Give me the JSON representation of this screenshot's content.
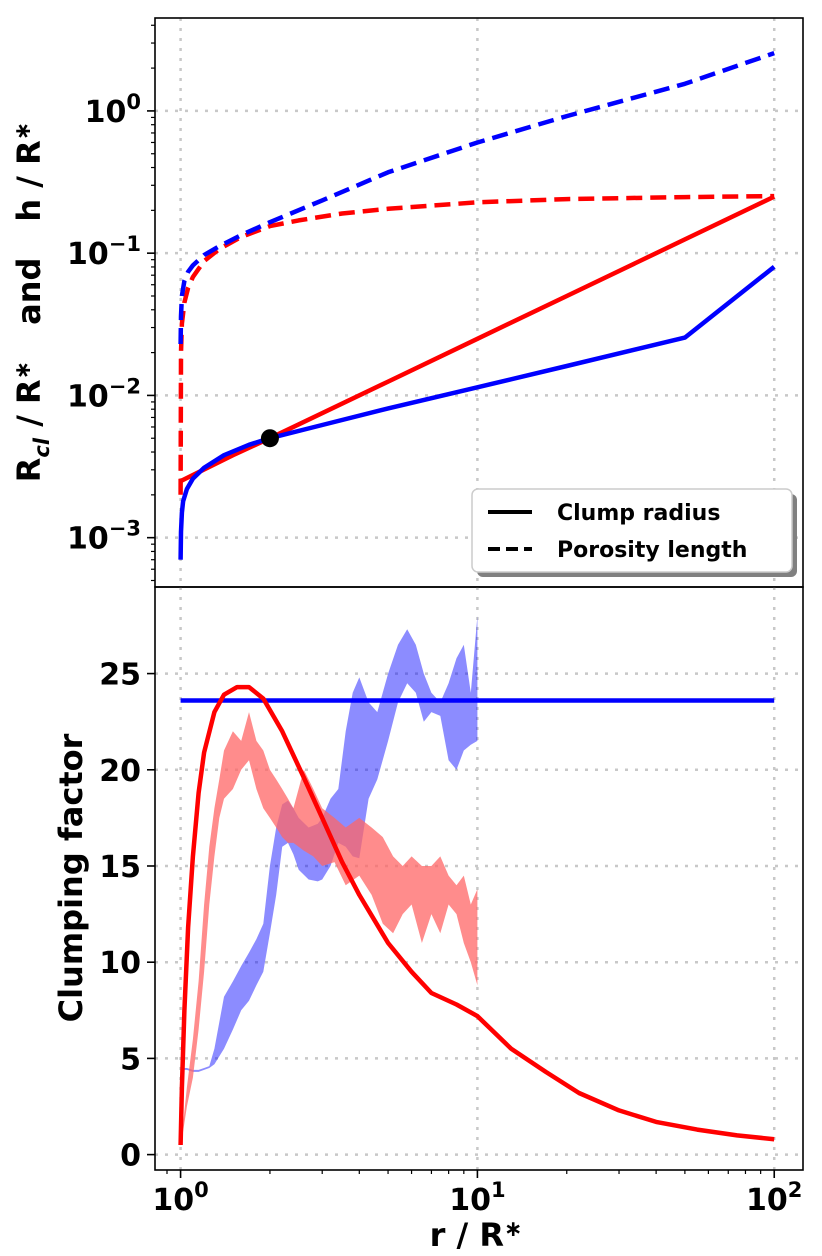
{
  "chart_data": [
    {
      "type": "line",
      "panel": "top",
      "xlabel": "",
      "ylabel": "R_cl / R_* and h / R_*",
      "ylabel_parts": {
        "r": "R",
        "cl": "cl",
        "mid": " / R",
        "star": "∗",
        "and": "and",
        "h": "h / R"
      },
      "xscale": "log",
      "yscale": "log",
      "xlim": [
        0.82,
        125
      ],
      "ylim": [
        0.00045,
        4.5
      ],
      "grid": true,
      "yticks": [
        {
          "value": 0.001,
          "label": "10",
          "exp": "−3"
        },
        {
          "value": 0.01,
          "label": "10",
          "exp": "−2"
        },
        {
          "value": 0.1,
          "label": "10",
          "exp": "−1"
        },
        {
          "value": 1,
          "label": "10",
          "exp": "0"
        }
      ],
      "legend": {
        "placement": "lower-right",
        "entries": [
          {
            "label": "Clump radius",
            "linestyle": "solid"
          },
          {
            "label": "Porosity length",
            "linestyle": "dashed"
          }
        ]
      },
      "series": [
        {
          "color": "#ff0000",
          "linestyle": "solid",
          "x": [
            1.0,
            1.5,
            2.0,
            5.0,
            10,
            20,
            50,
            100
          ],
          "y": [
            0.0025,
            0.0038,
            0.005,
            0.0125,
            0.025,
            0.05,
            0.125,
            0.25
          ]
        },
        {
          "color": "#0000ff",
          "linestyle": "solid",
          "x": [
            1.0,
            1.003,
            1.01,
            1.02,
            1.05,
            1.1,
            1.2,
            1.4,
            1.7,
            2.0,
            3,
            5,
            10,
            20,
            50,
            100
          ],
          "y": [
            0.0007,
            0.0011,
            0.0015,
            0.0018,
            0.0022,
            0.0026,
            0.0031,
            0.0038,
            0.0045,
            0.005,
            0.0062,
            0.0081,
            0.0114,
            0.0161,
            0.0255,
            0.0802
          ]
        },
        {
          "color": "#ff0000",
          "linestyle": "dashed",
          "x": [
            1.0,
            1.003,
            1.01,
            1.03,
            1.06,
            1.1,
            1.2,
            1.35,
            1.6,
            2.0,
            2.5,
            3.5,
            5,
            10,
            20,
            50,
            100
          ],
          "y": [
            0.002,
            0.02,
            0.032,
            0.045,
            0.057,
            0.068,
            0.088,
            0.107,
            0.13,
            0.155,
            0.17,
            0.19,
            0.205,
            0.228,
            0.24,
            0.248,
            0.252
          ]
        },
        {
          "color": "#0000ff",
          "linestyle": "dashed",
          "x": [
            1.0,
            1.003,
            1.01,
            1.03,
            1.06,
            1.1,
            1.2,
            1.35,
            1.6,
            2.0,
            3,
            5,
            10,
            20,
            50,
            100
          ],
          "y": [
            0.023,
            0.036,
            0.05,
            0.064,
            0.074,
            0.082,
            0.097,
            0.112,
            0.134,
            0.165,
            0.235,
            0.37,
            0.6,
            0.92,
            1.55,
            2.55
          ]
        }
      ],
      "marker": {
        "x": 2.0,
        "y": 0.005,
        "color": "#000000"
      }
    },
    {
      "type": "area",
      "panel": "bottom",
      "xlabel": "r / R_*",
      "xlabel_parts": {
        "main": "r / R",
        "star": "∗"
      },
      "ylabel": "Clumping factor",
      "xscale": "log",
      "yscale": "linear",
      "xlim": [
        0.82,
        125
      ],
      "ylim": [
        -0.8,
        29.5
      ],
      "grid": true,
      "yticks": [
        0,
        5,
        10,
        15,
        20,
        25
      ],
      "xticks": [
        {
          "value": 1,
          "label": "10",
          "exp": "0"
        },
        {
          "value": 10,
          "label": "10",
          "exp": "1"
        },
        {
          "value": 100,
          "label": "10",
          "exp": "2"
        }
      ],
      "series": [
        {
          "color": "#0000ff",
          "linestyle": "solid",
          "x": [
            1.0,
            100
          ],
          "y": [
            23.6,
            23.6
          ]
        },
        {
          "color": "#ff0000",
          "linestyle": "solid",
          "x": [
            1.0,
            1.01,
            1.03,
            1.06,
            1.1,
            1.15,
            1.2,
            1.3,
            1.4,
            1.55,
            1.7,
            1.9,
            2.2,
            2.6,
            3.0,
            3.5,
            4.0,
            5.0,
            6.0,
            7.0,
            8.5,
            10,
            13,
            17,
            22,
            30,
            40,
            55,
            75,
            100
          ],
          "y": [
            0.5,
            3.5,
            7.5,
            11.8,
            15.5,
            18.8,
            20.9,
            23.0,
            23.9,
            24.3,
            24.3,
            23.7,
            22.0,
            19.6,
            17.5,
            15.2,
            13.5,
            11.0,
            9.5,
            8.4,
            7.8,
            7.2,
            5.5,
            4.3,
            3.2,
            2.3,
            1.7,
            1.3,
            1.0,
            0.8
          ]
        }
      ],
      "bands": [
        {
          "color": "#0000ff",
          "alpha": 0.45,
          "x": [
            1.0,
            1.02,
            1.05,
            1.1,
            1.15,
            1.2,
            1.25,
            1.3,
            1.4,
            1.5,
            1.6,
            1.7,
            1.8,
            1.9,
            2.0,
            2.1,
            2.2,
            2.3,
            2.4,
            2.5,
            2.7,
            2.9,
            3.0,
            3.2,
            3.4,
            3.6,
            3.8,
            4.0,
            4.3,
            4.6,
            5.0,
            5.4,
            5.8,
            6.2,
            6.6,
            7.0,
            7.5,
            8.0,
            8.5,
            9.0,
            9.5,
            10.0
          ],
          "lo": [
            4.5,
            4.4,
            4.4,
            4.3,
            4.3,
            4.4,
            4.5,
            4.7,
            5.5,
            6.5,
            7.5,
            8.0,
            8.8,
            9.5,
            11.5,
            13.5,
            16.0,
            16.2,
            15.6,
            14.8,
            14.3,
            14.2,
            14.3,
            15.0,
            16.2,
            16.0,
            15.5,
            15.4,
            18.5,
            19.5,
            21.5,
            23.5,
            24.5,
            24.0,
            22.5,
            23.0,
            22.8,
            20.5,
            20.0,
            21.0,
            21.3,
            21.5
          ],
          "hi": [
            4.6,
            4.5,
            4.5,
            4.4,
            4.4,
            4.5,
            4.6,
            5.5,
            8.2,
            9.0,
            9.8,
            10.5,
            11.2,
            12.0,
            15.0,
            17.0,
            18.2,
            18.4,
            18.0,
            17.5,
            17.0,
            17.2,
            17.5,
            18.5,
            19.0,
            22.0,
            24.0,
            24.8,
            23.5,
            23.0,
            25.0,
            26.5,
            27.3,
            26.5,
            25.0,
            24.0,
            23.5,
            24.5,
            25.8,
            26.5,
            24.0,
            28.0
          ]
        },
        {
          "color": "#ff6666",
          "alpha": 0.75,
          "x": [
            1.0,
            1.02,
            1.05,
            1.1,
            1.15,
            1.2,
            1.25,
            1.3,
            1.35,
            1.4,
            1.5,
            1.6,
            1.7,
            1.8,
            1.9,
            2.0,
            2.1,
            2.2,
            2.3,
            2.4,
            2.6,
            2.8,
            3.0,
            3.3,
            3.6,
            4.0,
            4.4,
            4.8,
            5.2,
            5.6,
            6.0,
            6.5,
            7.0,
            7.5,
            8.0,
            8.5,
            9.0,
            9.5,
            10.0
          ],
          "lo": [
            0.5,
            1.2,
            2.5,
            4.0,
            6.5,
            9.5,
            13.0,
            15.5,
            17.5,
            18.5,
            19.0,
            20.0,
            20.5,
            19.0,
            18.0,
            17.5,
            17.0,
            16.5,
            16.2,
            16.2,
            15.8,
            15.5,
            15.0,
            15.2,
            14.0,
            14.5,
            13.5,
            12.0,
            11.5,
            12.5,
            13.0,
            11.0,
            12.5,
            11.5,
            13.0,
            12.5,
            11.0,
            10.0,
            8.8
          ],
          "hi": [
            0.7,
            1.6,
            3.5,
            6.0,
            9.0,
            13.0,
            16.0,
            18.0,
            19.5,
            21.0,
            22.0,
            21.5,
            23.0,
            21.5,
            21.0,
            20.0,
            19.5,
            19.0,
            18.5,
            18.0,
            20.0,
            19.0,
            18.0,
            17.5,
            17.0,
            17.5,
            17.0,
            16.5,
            15.5,
            15.0,
            15.5,
            15.0,
            15.0,
            15.5,
            14.5,
            14.0,
            14.5,
            13.0,
            13.8
          ]
        }
      ]
    }
  ]
}
